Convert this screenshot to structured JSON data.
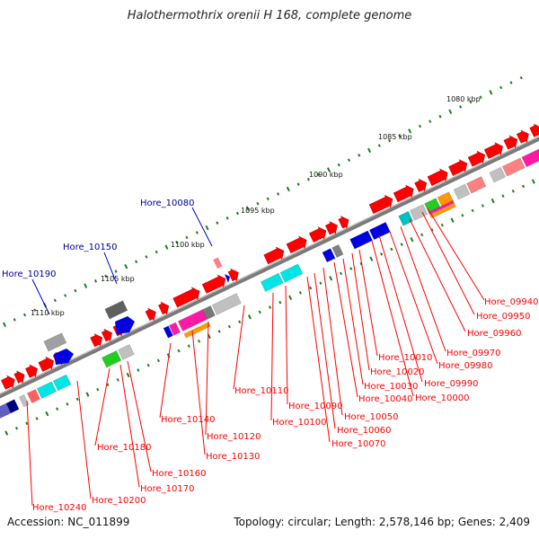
{
  "title": "Halothermothrix orenii H 168, complete genome",
  "footer": {
    "accession": "Accession: NC_011899",
    "summary": "Topology: circular; Length: 2,578,146 bp; Genes: 2,409"
  },
  "colors": {
    "backbone": "#8c8c8c",
    "gene_forward": "#ff0000",
    "gene_reverse": "#ff0000",
    "blue": "#0000e0",
    "cyan": "#00e5e5",
    "magenta": "#ff1aa6",
    "green": "#22cc22",
    "orange": "#ff9900",
    "gray": "#a0a0a0",
    "highlight_label": "#000099",
    "red_label": "#ff0000",
    "tick": "#1a7f1a"
  },
  "ticks": [
    {
      "label": "1080 kbp"
    },
    {
      "label": "1085 kbp"
    },
    {
      "label": "1090 kbp"
    },
    {
      "label": "1095 kbp"
    },
    {
      "label": "1100 kbp"
    },
    {
      "label": "1105 kbp"
    },
    {
      "label": "1110 kbp"
    }
  ],
  "highlight_labels": [
    "Hore_10080",
    "Hore_10150",
    "Hore_10190"
  ],
  "gene_labels": [
    "Hore_09940",
    "Hore_09950",
    "Hore_09960",
    "Hore_09970",
    "Hore_09980",
    "Hore_09990",
    "Hore_10000",
    "Hore_10010",
    "Hore_10020",
    "Hore_10030",
    "Hore_10040",
    "Hore_10050",
    "Hore_10060",
    "Hore_10070",
    "Hore_10090",
    "Hore_10100",
    "Hore_10110",
    "Hore_10120",
    "Hore_10130",
    "Hore_10140",
    "Hore_10160",
    "Hore_10170",
    "Hore_10180",
    "Hore_10200",
    "Hore_10240"
  ]
}
